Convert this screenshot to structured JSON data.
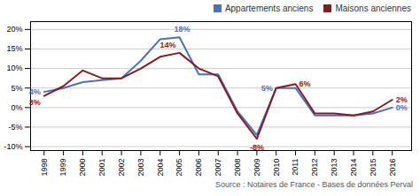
{
  "chart_data": {
    "type": "line",
    "caption": "Source : Notaires de France - Bases de données Perval",
    "x": [
      1998,
      1999,
      2000,
      2001,
      2002,
      2003,
      2004,
      2005,
      2006,
      2007,
      2008,
      2009,
      2010,
      2011,
      2012,
      2013,
      2014,
      2015,
      2016
    ],
    "series": [
      {
        "name": "Appartements anciens",
        "color": "#4472C4",
        "values": [
          4,
          5,
          6.5,
          7,
          7.5,
          12,
          17.5,
          18,
          8.5,
          8.5,
          -1,
          -7,
          5,
          5,
          -2,
          -2,
          -2,
          -1.5,
          0
        ]
      },
      {
        "name": "Maisons anciennes",
        "color": "#8B1A1A",
        "values": [
          3,
          5.5,
          9.5,
          7.5,
          7.5,
          10,
          13,
          14,
          10,
          8,
          -1.5,
          -8,
          5,
          6,
          -1.5,
          -1.5,
          -2,
          -1,
          2
        ]
      }
    ],
    "annotations": [
      {
        "text": "4%",
        "x": 1998,
        "y": 4,
        "color": "#4472C4"
      },
      {
        "text": "18%",
        "x": 2005,
        "y": 18,
        "color": "#4472C4"
      },
      {
        "text": "5%",
        "x": 2010,
        "y": 5,
        "color": "#4472C4"
      },
      {
        "text": "0%",
        "x": 2016,
        "y": 0,
        "color": "#4472C4"
      },
      {
        "text": "3%",
        "x": 1998,
        "y": 3,
        "color": "#8B1A1A"
      },
      {
        "text": "14%",
        "x": 2005,
        "y": 14,
        "color": "#8B1A1A"
      },
      {
        "text": "-8%",
        "x": 2009,
        "y": -8,
        "color": "#8B1A1A"
      },
      {
        "text": "6%",
        "x": 2011,
        "y": 6,
        "color": "#8B1A1A"
      },
      {
        "text": "2%",
        "x": 2016,
        "y": 2,
        "color": "#8B1A1A"
      }
    ],
    "xlim": [
      1997.3,
      2017.0
    ],
    "xticks": [
      1998,
      1999,
      2000,
      2001,
      2002,
      2003,
      2004,
      2005,
      2006,
      2007,
      2008,
      2009,
      2010,
      2011,
      2012,
      2013,
      2014,
      2015,
      2016
    ],
    "ylim": [
      -11,
      22
    ],
    "yticks": [
      {
        "value": -10,
        "label": "-10%"
      },
      {
        "value": -5,
        "label": "-5%"
      },
      {
        "value": 0,
        "label": "0%"
      },
      {
        "value": 5,
        "label": "5%"
      },
      {
        "value": 10,
        "label": "10%"
      },
      {
        "value": 15,
        "label": "15%"
      },
      {
        "value": 20,
        "label": "20%"
      }
    ],
    "grid": true,
    "legend": "upper right"
  }
}
